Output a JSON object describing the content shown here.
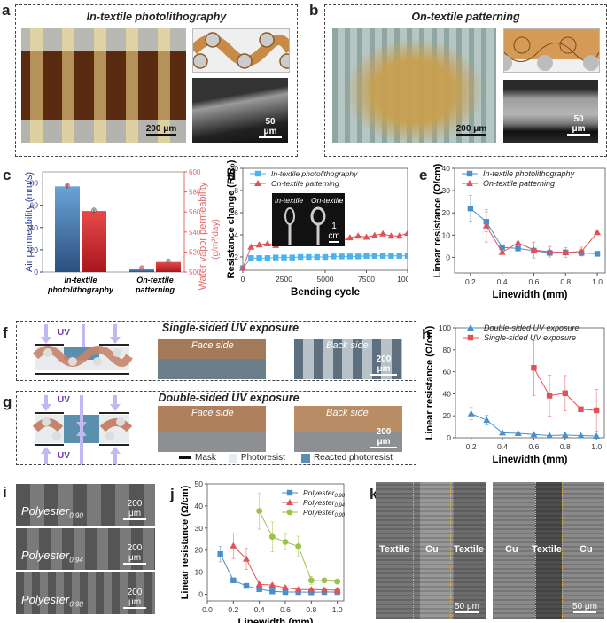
{
  "panels": {
    "a": {
      "letter": "a",
      "title": "In-textile photolithography",
      "scale_main": "200 μm",
      "scale_sem": "50 μm"
    },
    "b": {
      "letter": "b",
      "title": "On-textile patterning",
      "scale_main": "200 μm",
      "scale_sem": "50 μm"
    },
    "c": {
      "letter": "c"
    },
    "d": {
      "letter": "d",
      "inset_left": "In-textile",
      "inset_right": "On-textile",
      "inset_scale": "1 cm"
    },
    "e": {
      "letter": "e"
    },
    "f": {
      "letter": "f",
      "title": "Single-sided UV exposure",
      "uv": "UV",
      "face": "Face side",
      "back": "Back side",
      "scale": "200 μm"
    },
    "g": {
      "letter": "g",
      "title": "Double-sided UV exposure",
      "uv_top": "UV",
      "uv_bottom": "UV",
      "face": "Face side",
      "back": "Back side",
      "scale": "200 μm",
      "legend": {
        "mask": "Mask",
        "photoresist": "Photoresist",
        "reacted": "Reacted photoresist"
      }
    },
    "h": {
      "letter": "h"
    },
    "i": {
      "letter": "i",
      "items": [
        {
          "label": "Polyester",
          "sub": "0.90",
          "scale": "200 μm"
        },
        {
          "label": "Polyester",
          "sub": "0.94",
          "scale": "200 μm"
        },
        {
          "label": "Polyester",
          "sub": "0.98",
          "scale": "200 μm"
        }
      ]
    },
    "j": {
      "letter": "j"
    },
    "k": {
      "letter": "k",
      "left_labels": [
        "Textile",
        "Cu",
        "Textile"
      ],
      "right_labels": [
        "Cu",
        "Textile",
        "Cu"
      ],
      "scale": "50 μm"
    }
  },
  "colors": {
    "blue": "#4a8fc9",
    "red": "#e05255",
    "green": "#9bc34a",
    "lightblue": "#4db3ee",
    "navy": "#2e3e92",
    "copper": "#c8846a",
    "reacted": "#5b8fae",
    "uv": "#c4b8f0"
  },
  "chart_data": [
    {
      "id": "c",
      "type": "bar",
      "title": "",
      "categories": [
        "In-textile photolithography",
        "On-textile patterning"
      ],
      "category_lines": [
        [
          "In-textile",
          "photolithography"
        ],
        [
          "On-textile",
          "patterning"
        ]
      ],
      "series": [
        {
          "name": "Air permeability",
          "axis": "left",
          "values": [
            77,
            3
          ],
          "errors": [
            2,
            0.5
          ]
        },
        {
          "name": "Water vapor permeability",
          "axis": "right",
          "values": [
            561,
            510
          ],
          "errors": [
            2,
            1.5
          ]
        }
      ],
      "ylabel": "Air permeability (mm/s)",
      "ylim": [
        0,
        90
      ],
      "yticks": [
        0,
        20,
        40,
        60,
        80
      ],
      "y2label_line1": "Water vapor permeability",
      "y2label_line2": "(g/m²/day)",
      "y2lim": [
        500,
        600
      ],
      "y2ticks": [
        500,
        520,
        540,
        560,
        580,
        600
      ]
    },
    {
      "id": "d",
      "type": "line",
      "title": "",
      "xlabel": "Bending cycle",
      "ylabel": "Resistance change (R/R₀)",
      "xlim": [
        0,
        10000
      ],
      "ylim": [
        0.8,
        10
      ],
      "xticks": [
        0,
        2500,
        5000,
        7500,
        10000
      ],
      "yticks": [
        2,
        4,
        6,
        8,
        10
      ],
      "x": [
        0,
        500,
        1000,
        1500,
        2000,
        2500,
        3000,
        3500,
        4000,
        4500,
        5000,
        5500,
        6000,
        6500,
        7000,
        7500,
        8000,
        8500,
        9000,
        9500,
        10000
      ],
      "series": [
        {
          "name": "In-textile photolithography",
          "marker": "square",
          "values": [
            1,
            1.9,
            1.9,
            1.9,
            1.95,
            1.95,
            1.95,
            2,
            2,
            2,
            2,
            2.05,
            2.05,
            2.05,
            2.05,
            2.1,
            2.1,
            2.1,
            2.1,
            2.1,
            2.1
          ]
        },
        {
          "name": "On-textile patterning",
          "marker": "triangle",
          "values": [
            1,
            2.9,
            3.1,
            3.2,
            3.05,
            3.35,
            3.25,
            3.55,
            3.8,
            3.5,
            3.55,
            3.9,
            3.45,
            3.75,
            3.9,
            3.8,
            3.95,
            4.1,
            3.9,
            3.9,
            4.15
          ]
        }
      ],
      "legend": "top-left"
    },
    {
      "id": "e",
      "type": "line",
      "title": "",
      "xlabel": "Linewidth (mm)",
      "ylabel": "Linear resistance (Ω/cm)",
      "xlim": [
        0.1,
        1.05
      ],
      "ylim": [
        -7,
        40
      ],
      "xticks": [
        0.2,
        0.4,
        0.6,
        0.8,
        1.0
      ],
      "yticks": [
        0,
        10,
        20,
        30,
        40
      ],
      "x": [
        0.2,
        0.3,
        0.4,
        0.5,
        0.6,
        0.7,
        0.8,
        0.9,
        1.0
      ],
      "series": [
        {
          "name": "In-textile photolithography",
          "marker": "square",
          "values": [
            22,
            16,
            4.5,
            4,
            3,
            2,
            2.2,
            2,
            1.6
          ],
          "errors": [
            5.8,
            4.5,
            0.8,
            0.6,
            1,
            1,
            0.8,
            0.6,
            0.3
          ]
        },
        {
          "name": "On-textile patterning",
          "marker": "triangle",
          "values": [
            null,
            14.2,
            2.3,
            6.5,
            3.3,
            2.5,
            2.2,
            2.6,
            11.2
          ],
          "errors": [
            null,
            7.3,
            0.5,
            0.6,
            3.6,
            2.4,
            2.2,
            2,
            0.4
          ]
        }
      ],
      "legend": "top-right"
    },
    {
      "id": "h",
      "type": "line",
      "title": "",
      "xlabel": "Linewidth (mm)",
      "ylabel": "Linear resistance (Ω/cm)",
      "xlim": [
        0.1,
        1.05
      ],
      "ylim": [
        0,
        100
      ],
      "xticks": [
        0.2,
        0.4,
        0.6,
        0.8,
        1.0
      ],
      "yticks": [
        0,
        20,
        40,
        60,
        80,
        100
      ],
      "x": [
        0.2,
        0.3,
        0.4,
        0.5,
        0.6,
        0.7,
        0.8,
        0.9,
        1.0
      ],
      "series": [
        {
          "name": "Double-sided UV exposure",
          "marker": "triangle",
          "values": [
            22,
            16,
            4.5,
            4,
            3,
            2,
            2.5,
            2,
            1.6
          ],
          "errors": [
            5.5,
            4.5,
            1,
            0.6,
            0.8,
            0.6,
            0.6,
            0.5,
            0.3
          ]
        },
        {
          "name": "Single-sided UV exposure",
          "marker": "square",
          "values": [
            null,
            null,
            null,
            null,
            63.5,
            38.3,
            40.5,
            26,
            25
          ],
          "errors": [
            null,
            null,
            null,
            null,
            25,
            18.5,
            16,
            0.5,
            19
          ]
        }
      ],
      "legend": "top-right"
    },
    {
      "id": "j",
      "type": "line",
      "title": "",
      "xlabel": "Linewidth (mm)",
      "ylabel": "Linear resistance (Ω/cm)",
      "xlim": [
        0,
        1.05
      ],
      "ylim": [
        -3,
        50
      ],
      "xticks": [
        0.0,
        0.2,
        0.4,
        0.6,
        0.8,
        1.0
      ],
      "yticks": [
        0,
        10,
        20,
        30,
        40,
        50
      ],
      "x": [
        0.1,
        0.2,
        0.3,
        0.4,
        0.5,
        0.6,
        0.7,
        0.8,
        0.9,
        1.0
      ],
      "series": [
        {
          "name": "Polyester",
          "sub": "0.98",
          "marker": "square",
          "values": [
            18.2,
            6.3,
            3.8,
            2.3,
            1.3,
            1,
            1,
            0.9,
            1,
            1
          ],
          "errors": [
            3.5,
            0.5,
            0.4,
            0.3,
            0.2,
            0.2,
            0.2,
            0.2,
            0.2,
            0.2
          ]
        },
        {
          "name": "Polyester",
          "sub": "0.94",
          "marker": "triangle",
          "values": [
            null,
            22,
            16,
            4.5,
            4.2,
            3,
            2.1,
            2.1,
            2,
            1.8
          ],
          "errors": [
            null,
            5.8,
            4.8,
            0.8,
            0.6,
            0.6,
            0.4,
            0.4,
            0.4,
            0.4
          ]
        },
        {
          "name": "Polyester",
          "sub": "0.90",
          "marker": "circle",
          "values": [
            null,
            null,
            null,
            37.7,
            26,
            23.7,
            21.7,
            6.3,
            6.3,
            5.8
          ],
          "errors": [
            null,
            null,
            null,
            8.2,
            6.8,
            3.5,
            4.6,
            1.8,
            0.8,
            0.6
          ]
        }
      ],
      "legend": "top-right"
    }
  ]
}
